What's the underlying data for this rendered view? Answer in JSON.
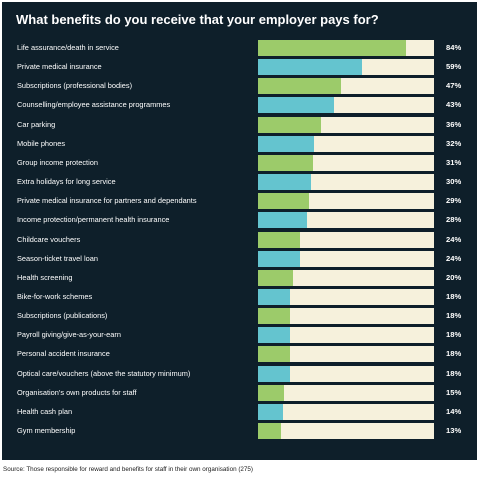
{
  "chart_data": {
    "type": "bar",
    "orientation": "horizontal",
    "title": "What benefits do you receive that your employer pays for?",
    "source": "Source: Those responsible for reward and benefits for staff in their own organisation (275)",
    "xlim": [
      0,
      100
    ],
    "colors": {
      "green": "#9ccb6a",
      "teal": "#64c4cf",
      "track": "#f6f1dc",
      "background": "#0e1f2a"
    },
    "items": [
      {
        "label": "Life assurance/death in service",
        "value": 84,
        "display": "84%",
        "color": "#9ccb6a"
      },
      {
        "label": "Private medical insurance",
        "value": 59,
        "display": "59%",
        "color": "#64c4cf"
      },
      {
        "label": "Subscriptions (professional bodies)",
        "value": 47,
        "display": "47%",
        "color": "#9ccb6a"
      },
      {
        "label": "Counselling/employee assistance programmes",
        "value": 43,
        "display": "43%",
        "color": "#64c4cf"
      },
      {
        "label": "Car parking",
        "value": 36,
        "display": "36%",
        "color": "#9ccb6a"
      },
      {
        "label": "Mobile phones",
        "value": 32,
        "display": "32%",
        "color": "#64c4cf"
      },
      {
        "label": "Group income protection",
        "value": 31,
        "display": "31%",
        "color": "#9ccb6a"
      },
      {
        "label": "Extra holidays for long service",
        "value": 30,
        "display": "30%",
        "color": "#64c4cf"
      },
      {
        "label": "Private medical insurance for partners and dependants",
        "value": 29,
        "display": "29%",
        "color": "#9ccb6a"
      },
      {
        "label": "Income protection/permanent health insurance",
        "value": 28,
        "display": "28%",
        "color": "#64c4cf"
      },
      {
        "label": "Childcare vouchers",
        "value": 24,
        "display": "24%",
        "color": "#9ccb6a"
      },
      {
        "label": "Season-ticket travel loan",
        "value": 24,
        "display": "24%",
        "color": "#64c4cf"
      },
      {
        "label": "Health screening",
        "value": 20,
        "display": "20%",
        "color": "#9ccb6a"
      },
      {
        "label": "Bike-for-work schemes",
        "value": 18,
        "display": "18%",
        "color": "#64c4cf"
      },
      {
        "label": "Subscriptions (publications)",
        "value": 18,
        "display": "18%",
        "color": "#9ccb6a"
      },
      {
        "label": "Payroll giving/give-as-your-earn",
        "value": 18,
        "display": "18%",
        "color": "#64c4cf"
      },
      {
        "label": "Personal accident insurance",
        "value": 18,
        "display": "18%",
        "color": "#9ccb6a"
      },
      {
        "label": "Optical care/vouchers (above the statutory minimum)",
        "value": 18,
        "display": "18%",
        "color": "#64c4cf"
      },
      {
        "label": "Organisation's own products for staff",
        "value": 15,
        "display": "15%",
        "color": "#9ccb6a"
      },
      {
        "label": "Health cash plan",
        "value": 14,
        "display": "14%",
        "color": "#64c4cf"
      },
      {
        "label": "Gym membership",
        "value": 13,
        "display": "13%",
        "color": "#9ccb6a"
      }
    ]
  }
}
